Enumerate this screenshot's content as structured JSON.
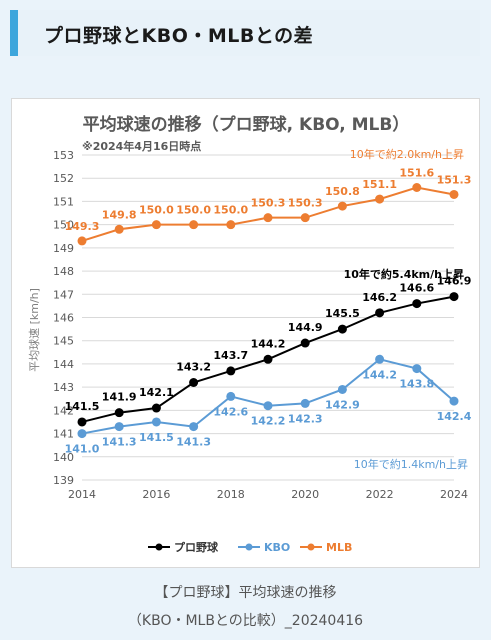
{
  "header": {
    "title": "プロ野球とKBO・MLBとの差"
  },
  "chart_data": {
    "type": "line",
    "title": "平均球速の推移（プロ野球, KBO, MLB）",
    "subtitle": "※2024年4月16日時点",
    "ylabel": "平均球速 [km/h]",
    "xlabel": "",
    "x": [
      2014,
      2015,
      2016,
      2017,
      2018,
      2019,
      2020,
      2021,
      2022,
      2023,
      2024
    ],
    "xticks": [
      "2014",
      "2016",
      "2018",
      "2020",
      "2022",
      "2024"
    ],
    "ylim": [
      139,
      153
    ],
    "grid": true,
    "legend": "bottom",
    "series": [
      {
        "name": "プロ野球",
        "color": "#000000",
        "values": [
          141.5,
          141.9,
          142.1,
          143.2,
          143.7,
          144.2,
          144.9,
          145.5,
          146.2,
          146.6,
          146.9
        ],
        "labels": [
          "141.5",
          "141.9",
          "142.1",
          "143.2",
          "143.7",
          "144.2",
          "144.9",
          "145.5",
          "146.2",
          "146.6",
          "146.9"
        ]
      },
      {
        "name": "KBO",
        "color": "#5b9bd5",
        "values": [
          141.0,
          141.3,
          141.5,
          141.3,
          142.6,
          142.2,
          142.3,
          142.9,
          144.2,
          143.8,
          142.4
        ],
        "labels": [
          "141.0",
          "141.3",
          "141.5",
          "141.3",
          "142.6",
          "142.2",
          "142.3",
          "142.9",
          "144.2",
          "143.8",
          "142.4"
        ]
      },
      {
        "name": "MLB",
        "color": "#ed7d31",
        "values": [
          149.3,
          149.8,
          150.0,
          150.0,
          150.0,
          150.3,
          150.3,
          150.8,
          151.1,
          151.6,
          151.3
        ],
        "labels": [
          "149.3",
          "149.8",
          "150.0",
          "150.0",
          "150.0",
          "150.3",
          "150.3",
          "150.8",
          "151.1",
          "151.6",
          "151.3"
        ]
      }
    ],
    "annotations": [
      {
        "text": "10年で約2.0km/h上昇",
        "color": "#ed7d31"
      },
      {
        "text": "10年で約5.4km/h上昇",
        "color": "#000000"
      },
      {
        "text": "10年で約1.4km/h上昇",
        "color": "#5b9bd5"
      }
    ]
  },
  "caption": {
    "line1": "【プロ野球】平均球速の推移",
    "line2": "（KBO・MLBとの比較）_20240416"
  }
}
